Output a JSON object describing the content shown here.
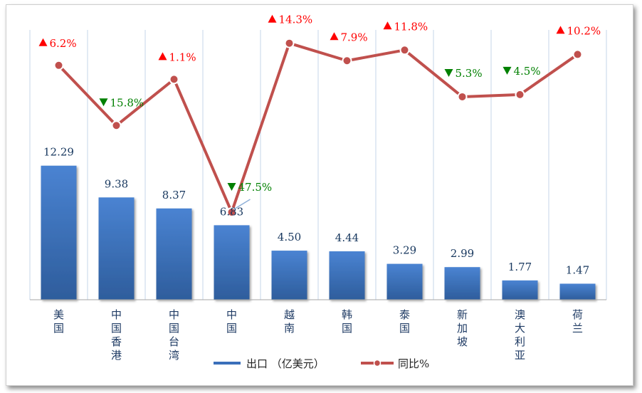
{
  "chart_data": {
    "type": "bar+line",
    "categories": [
      "美国",
      "中国香港",
      "中国台湾",
      "中国",
      "越南",
      "韩国",
      "泰国",
      "新加坡",
      "澳大利亚",
      "荷兰"
    ],
    "series": [
      {
        "name": "出口 （亿美元）",
        "type": "bar",
        "color": "#3a6fba",
        "values": [
          12.29,
          9.38,
          8.37,
          6.83,
          4.5,
          4.44,
          3.29,
          2.99,
          1.77,
          1.47
        ],
        "labels": [
          "12.29",
          "9.38",
          "8.37",
          "6.83",
          "4.50",
          "4.44",
          "3.29",
          "2.99",
          "1.77",
          "1.47"
        ]
      },
      {
        "name": "同比%",
        "type": "line",
        "color": "#c0504d",
        "values": [
          6.2,
          -15.8,
          1.1,
          -47.5,
          14.3,
          7.9,
          11.8,
          -5.3,
          -4.5,
          10.2
        ],
        "labels": [
          "6.2%",
          "15.8%",
          "1.1%",
          "47.5%",
          "14.3%",
          "7.9%",
          "11.8%",
          "5.3%",
          "4.5%",
          "10.2%"
        ]
      }
    ],
    "colors": {
      "up": "#ff0000",
      "down": "#008000",
      "grid": "#c5d5ea"
    },
    "grid": "vertical",
    "legend_position": "bottom"
  }
}
